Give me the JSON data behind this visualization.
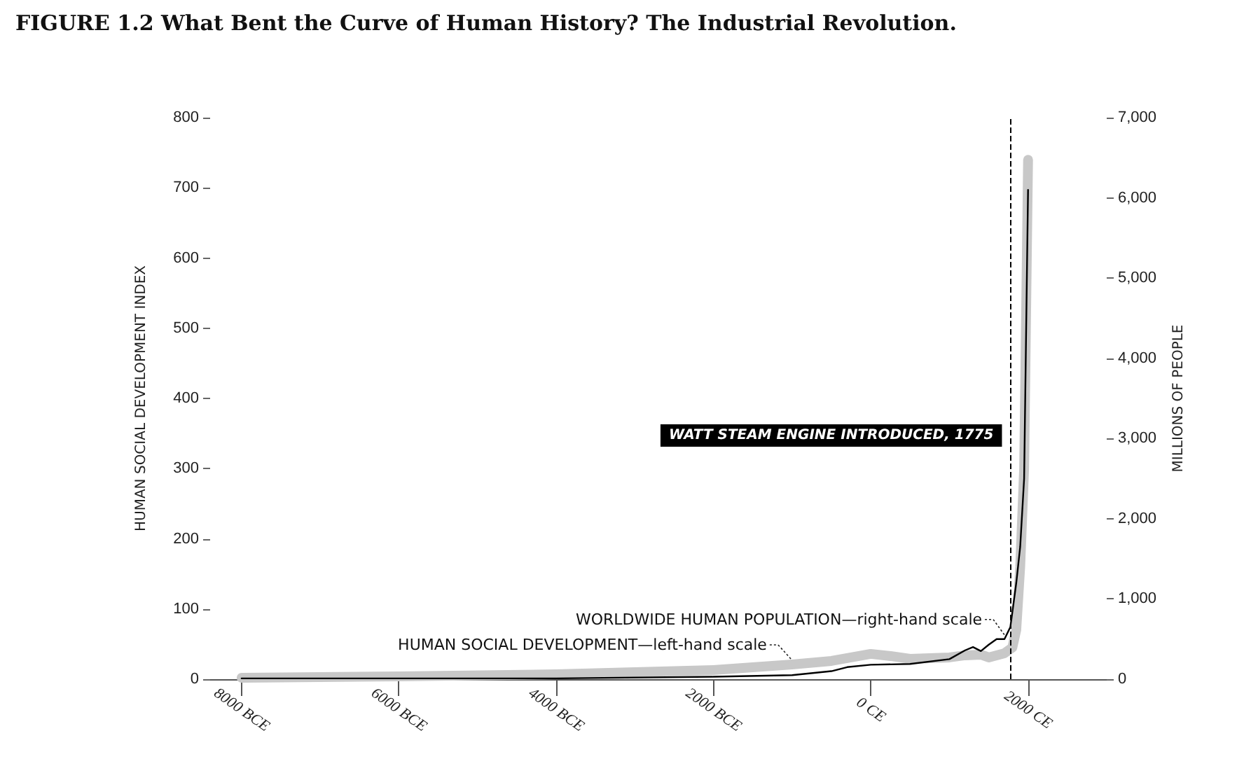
{
  "chart_data": {
    "type": "line",
    "title": "FIGURE 1.2 What Bent the Curve of Human History? The Industrial Revolution.",
    "ylabel": "HUMAN SOCIAL DEVELOPMENT INDEX",
    "y2label": "MILLIONS OF PEOPLE",
    "xlim": [
      -8400,
      3000
    ],
    "xticks": [
      {
        "value": -8000,
        "label": "8000 BCE"
      },
      {
        "value": -6000,
        "label": "6000 BCE"
      },
      {
        "value": -4000,
        "label": "4000 BCE"
      },
      {
        "value": -2000,
        "label": "2000 BCE"
      },
      {
        "value": 0,
        "label": "0 CE"
      },
      {
        "value": 2000,
        "label": "2000 CE"
      }
    ],
    "ylim": [
      0,
      800
    ],
    "yticks": [
      0,
      100,
      200,
      300,
      400,
      500,
      600,
      700,
      800
    ],
    "y2lim": [
      0,
      7000
    ],
    "y2ticks": [
      0,
      {
        "value": 1000,
        "label": "1,000"
      },
      {
        "value": 2000,
        "label": "2,000"
      },
      {
        "value": 3000,
        "label": "3,000"
      },
      {
        "value": 4000,
        "label": "4,000"
      },
      {
        "value": 5000,
        "label": "5,000"
      },
      {
        "value": 6000,
        "label": "6,000"
      },
      {
        "value": 7000,
        "label": "7,000"
      }
    ],
    "grid": false,
    "legend": false,
    "marker": "none",
    "series": [
      {
        "name": "HUMAN SOCIAL DEVELOPMENT—left-hand scale",
        "color": "#c8c8c8",
        "x": [
          -8000,
          -6000,
          -4000,
          -2000,
          -1000,
          -500,
          0,
          250,
          500,
          1000,
          1200,
          1400,
          1500,
          1700,
          1800,
          1850,
          1900,
          1950,
          2000
        ],
        "values": [
          2,
          4,
          7,
          13,
          21,
          26,
          36,
          33,
          29,
          31,
          34,
          35,
          31,
          37,
          45,
          70,
          160,
          300,
          740
        ]
      },
      {
        "name": "WORLDWIDE HUMAN POPULATION—right-hand scale",
        "color": "#000000",
        "axis": "y2",
        "x": [
          -8000,
          -4000,
          -2000,
          -1000,
          -500,
          -300,
          0,
          500,
          1000,
          1200,
          1300,
          1400,
          1500,
          1600,
          1700,
          1775,
          1850,
          1900,
          1950,
          2000
        ],
        "values": [
          10,
          10,
          30,
          50,
          100,
          150,
          180,
          190,
          250,
          360,
          400,
          350,
          430,
          500,
          500,
          650,
          1200,
          1650,
          2500,
          6100
        ]
      }
    ],
    "ref_lines": [
      {
        "axis": "x",
        "value": 1775,
        "label": "WATT STEAM ENGINE INTRODUCED, 1775",
        "line_style": "dashed",
        "color": "#000000"
      }
    ]
  }
}
